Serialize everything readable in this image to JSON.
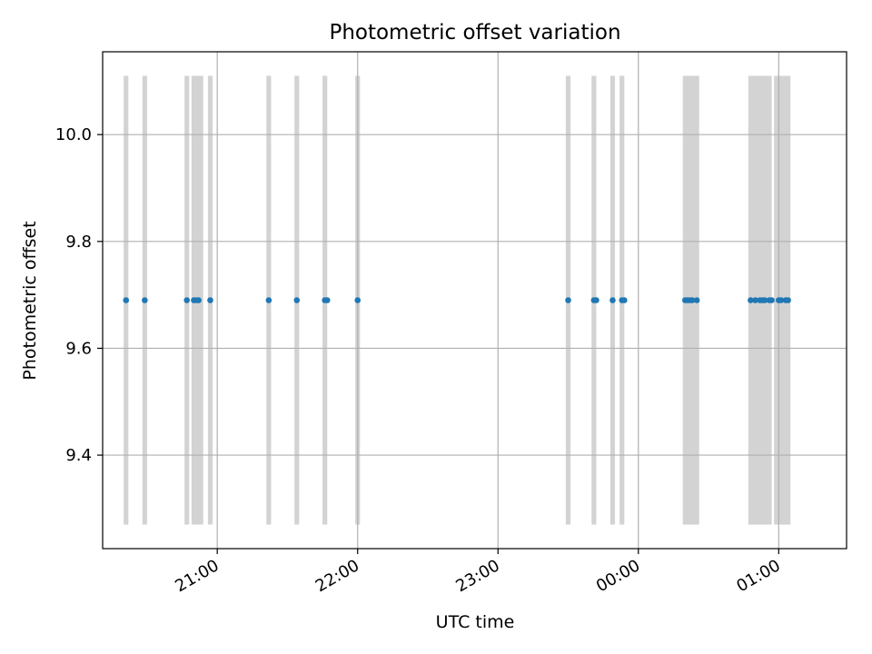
{
  "chart_data": {
    "type": "scatter",
    "title": "Photometric offset variation",
    "xlabel": "UTC time",
    "ylabel": "Photometric offset",
    "x_unit": "UTC time (HH:MM, 20:00 to 01:15)",
    "xlim": [
      "20:11",
      "01:29"
    ],
    "ylim": [
      9.225,
      10.155
    ],
    "x_ticks": [
      "21:00",
      "22:00",
      "23:00",
      "00:00",
      "01:00"
    ],
    "y_ticks": [
      9.4,
      9.6,
      9.8,
      10.0
    ],
    "y_tick_labels": [
      "9.4",
      "9.6",
      "9.8",
      "10.0"
    ],
    "grid": true,
    "marker_color": "#1f77b4",
    "band_color": "#d3d3d3",
    "band_ylim": [
      9.27,
      10.11
    ],
    "bands": [
      [
        "20:20",
        "20:22"
      ],
      [
        "20:28",
        "20:30"
      ],
      [
        "20:46",
        "20:48"
      ],
      [
        "20:49",
        "20:54"
      ],
      [
        "20:56",
        "20:58"
      ],
      [
        "21:21",
        "21:23"
      ],
      [
        "21:33",
        "21:35"
      ],
      [
        "21:45",
        "21:47"
      ],
      [
        "21:59",
        "22:01"
      ],
      [
        "23:29",
        "23:31"
      ],
      [
        "23:40",
        "23:42"
      ],
      [
        "23:48",
        "23:50"
      ],
      [
        "23:52",
        "23:54"
      ],
      [
        "00:19",
        "00:26"
      ],
      [
        "00:47",
        "00:49"
      ],
      [
        "00:49",
        "00:57"
      ],
      [
        "00:58",
        "01:05"
      ]
    ],
    "x": [
      "20:21",
      "20:29",
      "20:47",
      "20:50",
      "20:51",
      "20:52",
      "20:57",
      "21:22",
      "21:34",
      "21:46",
      "21:47",
      "22:00",
      "23:30",
      "23:41",
      "23:42",
      "23:49",
      "23:53",
      "23:54",
      "00:20",
      "00:21",
      "00:22",
      "00:23",
      "00:25",
      "00:48",
      "00:50",
      "00:52",
      "00:53",
      "00:54",
      "00:56",
      "00:57",
      "01:00",
      "01:01",
      "01:03",
      "01:04"
    ],
    "y": [
      9.69,
      9.69,
      9.69,
      9.69,
      9.69,
      9.69,
      9.69,
      9.69,
      9.69,
      9.69,
      9.69,
      9.69,
      9.69,
      9.69,
      9.69,
      9.69,
      9.69,
      9.69,
      9.69,
      9.69,
      9.69,
      9.69,
      9.69,
      9.69,
      9.69,
      9.69,
      9.69,
      9.69,
      9.69,
      9.69,
      9.69,
      9.69,
      9.69,
      9.69
    ]
  }
}
